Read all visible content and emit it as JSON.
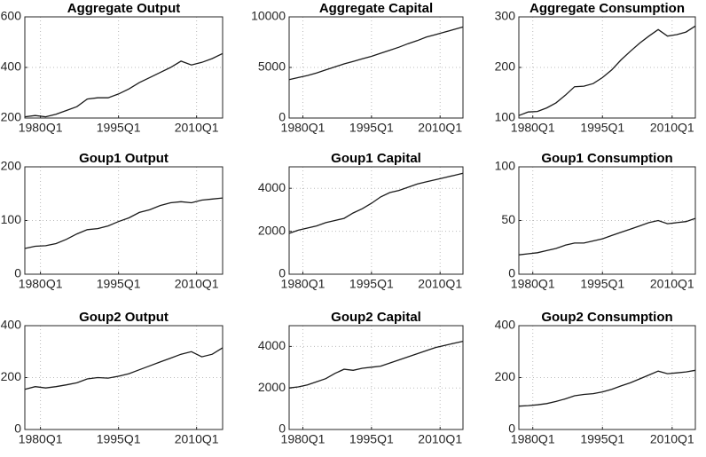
{
  "chart_data": [
    {
      "type": "line",
      "title": "Aggregate Output",
      "x": [
        1977,
        1979,
        1981,
        1983,
        1985,
        1987,
        1989,
        1991,
        1993,
        1995,
        1997,
        1999,
        2001,
        2003,
        2005,
        2007,
        2009,
        2011,
        2013,
        2015
      ],
      "values": [
        205,
        210,
        205,
        215,
        230,
        245,
        275,
        280,
        280,
        295,
        315,
        340,
        360,
        380,
        400,
        425,
        410,
        420,
        435,
        455
      ],
      "color": "#1a1a1a",
      "xlim": [
        1977,
        2015
      ],
      "xticks": [
        {
          "value": 1980,
          "label": "1980Q1"
        },
        {
          "value": 1995,
          "label": "1995Q1"
        },
        {
          "value": 2010,
          "label": "2010Q1"
        }
      ],
      "ylim": [
        200,
        600
      ],
      "yticks": [
        200,
        400,
        600
      ],
      "grid": true
    },
    {
      "type": "line",
      "title": "Aggregate Capital",
      "x": [
        1977,
        1979,
        1981,
        1983,
        1985,
        1987,
        1989,
        1991,
        1993,
        1995,
        1997,
        1999,
        2001,
        2003,
        2005,
        2007,
        2009,
        2011,
        2013,
        2015
      ],
      "values": [
        3800,
        4000,
        4200,
        4450,
        4750,
        5050,
        5350,
        5600,
        5850,
        6100,
        6400,
        6700,
        7000,
        7350,
        7650,
        8000,
        8250,
        8500,
        8750,
        9000
      ],
      "color": "#1a1a1a",
      "xlim": [
        1977,
        2015
      ],
      "xticks": [
        {
          "value": 1980,
          "label": "1980Q1"
        },
        {
          "value": 1995,
          "label": "1995Q1"
        },
        {
          "value": 2010,
          "label": "2010Q1"
        }
      ],
      "ylim": [
        0,
        10000
      ],
      "yticks": [
        0,
        5000,
        10000
      ],
      "grid": true
    },
    {
      "type": "line",
      "title": "Aggregate Consumption",
      "x": [
        1977,
        1979,
        1981,
        1983,
        1985,
        1987,
        1989,
        1991,
        1993,
        1995,
        1997,
        1999,
        2001,
        2003,
        2005,
        2007,
        2009,
        2011,
        2013,
        2015
      ],
      "values": [
        105,
        112,
        113,
        120,
        130,
        145,
        162,
        163,
        168,
        180,
        195,
        215,
        232,
        248,
        262,
        275,
        262,
        265,
        270,
        282
      ],
      "color": "#1a1a1a",
      "xlim": [
        1977,
        2015
      ],
      "xticks": [
        {
          "value": 1980,
          "label": "1980Q1"
        },
        {
          "value": 1995,
          "label": "1995Q1"
        },
        {
          "value": 2010,
          "label": "2010Q1"
        }
      ],
      "ylim": [
        100,
        300
      ],
      "yticks": [
        100,
        200,
        300
      ],
      "grid": true
    },
    {
      "type": "line",
      "title": "Goup1 Output",
      "x": [
        1977,
        1979,
        1981,
        1983,
        1985,
        1987,
        1989,
        1991,
        1993,
        1995,
        1997,
        1999,
        2001,
        2003,
        2005,
        2007,
        2009,
        2011,
        2013,
        2015
      ],
      "values": [
        48,
        52,
        53,
        57,
        65,
        75,
        83,
        85,
        90,
        98,
        105,
        115,
        120,
        128,
        133,
        135,
        133,
        138,
        140,
        142
      ],
      "color": "#1a1a1a",
      "xlim": [
        1977,
        2015
      ],
      "xticks": [
        {
          "value": 1980,
          "label": "1980Q1"
        },
        {
          "value": 1995,
          "label": "1995Q1"
        },
        {
          "value": 2010,
          "label": "2010Q1"
        }
      ],
      "ylim": [
        0,
        200
      ],
      "yticks": [
        0,
        100,
        200
      ],
      "grid": true
    },
    {
      "type": "line",
      "title": "Goup1 Capital",
      "x": [
        1977,
        1979,
        1981,
        1983,
        1985,
        1987,
        1989,
        1991,
        1993,
        1995,
        1997,
        1999,
        2001,
        2003,
        2005,
        2007,
        2009,
        2011,
        2013,
        2015
      ],
      "values": [
        1900,
        2050,
        2150,
        2250,
        2400,
        2500,
        2600,
        2850,
        3050,
        3300,
        3600,
        3800,
        3900,
        4050,
        4200,
        4300,
        4400,
        4500,
        4600,
        4700
      ],
      "color": "#1a1a1a",
      "xlim": [
        1977,
        2015
      ],
      "xticks": [
        {
          "value": 1980,
          "label": "1980Q1"
        },
        {
          "value": 1995,
          "label": "1995Q1"
        },
        {
          "value": 2010,
          "label": "2010Q1"
        }
      ],
      "ylim": [
        0,
        5000
      ],
      "yticks": [
        0,
        2000,
        4000
      ],
      "grid": true
    },
    {
      "type": "line",
      "title": "Goup1 Consumption",
      "x": [
        1977,
        1979,
        1981,
        1983,
        1985,
        1987,
        1989,
        1991,
        1993,
        1995,
        1997,
        1999,
        2001,
        2003,
        2005,
        2007,
        2009,
        2011,
        2013,
        2015
      ],
      "values": [
        18,
        19,
        20,
        22,
        24,
        27,
        29,
        29,
        31,
        33,
        36,
        39,
        42,
        45,
        48,
        50,
        47,
        48,
        49,
        52
      ],
      "color": "#1a1a1a",
      "xlim": [
        1977,
        2015
      ],
      "xticks": [
        {
          "value": 1980,
          "label": "1980Q1"
        },
        {
          "value": 1995,
          "label": "1995Q1"
        },
        {
          "value": 2010,
          "label": "2010Q1"
        }
      ],
      "ylim": [
        0,
        100
      ],
      "yticks": [
        0,
        50,
        100
      ],
      "grid": true
    },
    {
      "type": "line",
      "title": "Goup2 Output",
      "x": [
        1977,
        1979,
        1981,
        1983,
        1985,
        1987,
        1989,
        1991,
        1993,
        1995,
        1997,
        1999,
        2001,
        2003,
        2005,
        2007,
        2009,
        2011,
        2013,
        2015
      ],
      "values": [
        155,
        165,
        160,
        165,
        172,
        180,
        195,
        200,
        198,
        205,
        215,
        230,
        245,
        260,
        275,
        290,
        300,
        280,
        290,
        315
      ],
      "color": "#1a1a1a",
      "xlim": [
        1977,
        2015
      ],
      "xticks": [
        {
          "value": 1980,
          "label": "1980Q1"
        },
        {
          "value": 1995,
          "label": "1995Q1"
        },
        {
          "value": 2010,
          "label": "2010Q1"
        }
      ],
      "ylim": [
        0,
        400
      ],
      "yticks": [
        0,
        200,
        400
      ],
      "grid": true
    },
    {
      "type": "line",
      "title": "Goup2 Capital",
      "x": [
        1977,
        1979,
        1981,
        1983,
        1985,
        1987,
        1989,
        1991,
        1993,
        1995,
        1997,
        1999,
        2001,
        2003,
        2005,
        2007,
        2009,
        2011,
        2013,
        2015
      ],
      "values": [
        2000,
        2050,
        2150,
        2300,
        2450,
        2700,
        2900,
        2850,
        2950,
        3000,
        3050,
        3200,
        3350,
        3500,
        3650,
        3800,
        3950,
        4050,
        4150,
        4250
      ],
      "color": "#1a1a1a",
      "xlim": [
        1977,
        2015
      ],
      "xticks": [
        {
          "value": 1980,
          "label": "1980Q1"
        },
        {
          "value": 1995,
          "label": "1995Q1"
        },
        {
          "value": 2010,
          "label": "2010Q1"
        }
      ],
      "ylim": [
        0,
        5000
      ],
      "yticks": [
        0,
        2000,
        4000
      ],
      "grid": true
    },
    {
      "type": "line",
      "title": "Goup2 Consumption",
      "x": [
        1977,
        1979,
        1981,
        1983,
        1985,
        1987,
        1989,
        1991,
        1993,
        1995,
        1997,
        1999,
        2001,
        2003,
        2005,
        2007,
        2009,
        2011,
        2013,
        2015
      ],
      "values": [
        90,
        92,
        95,
        100,
        108,
        118,
        130,
        135,
        138,
        145,
        155,
        168,
        180,
        195,
        210,
        225,
        215,
        218,
        222,
        228
      ],
      "color": "#1a1a1a",
      "xlim": [
        1977,
        2015
      ],
      "xticks": [
        {
          "value": 1980,
          "label": "1980Q1"
        },
        {
          "value": 1995,
          "label": "1995Q1"
        },
        {
          "value": 2010,
          "label": "2010Q1"
        }
      ],
      "ylim": [
        0,
        400
      ],
      "yticks": [
        0,
        200,
        400
      ],
      "grid": true
    }
  ]
}
